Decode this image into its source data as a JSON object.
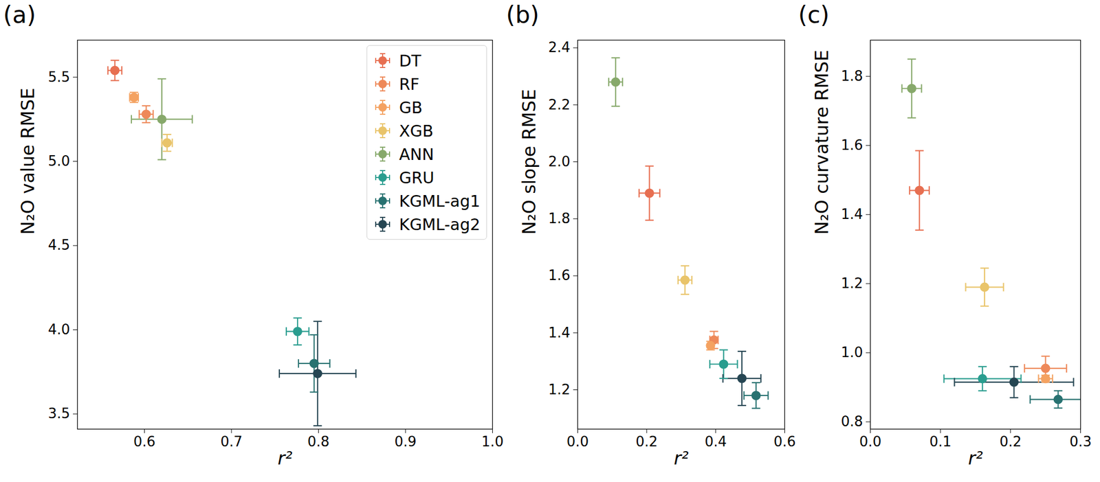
{
  "chart_data": [
    {
      "type": "scatter",
      "title": "(a)",
      "x_label": "r²",
      "y_label": "N₂O value RMSE",
      "xlim": [
        0.523,
        1.0
      ],
      "ylim": [
        3.41,
        5.72
      ],
      "xticks": [
        0.6,
        0.7,
        0.8,
        0.9,
        {
          "value": 1.0,
          "label": "1.0"
        }
      ],
      "yticks": [
        3.5,
        {
          "value": 4.0,
          "label": "4.0"
        },
        4.5,
        {
          "value": 5.0,
          "label": "5.0"
        },
        5.5
      ],
      "legend": "upper right",
      "grid": false,
      "series": [
        {
          "name": "DT",
          "color": "#e76f51",
          "x": 0.566,
          "y": 5.54,
          "x_error": 0.008,
          "y_error": 0.06
        },
        {
          "name": "RF",
          "color": "#ee8959",
          "x": 0.602,
          "y": 5.28,
          "x_error": 0.008,
          "y_error": 0.05
        },
        {
          "name": "GB",
          "color": "#f4a261",
          "x": 0.588,
          "y": 5.38,
          "x_error": 0.005,
          "y_error": 0.03
        },
        {
          "name": "XGB",
          "color": "#e9c46a",
          "x": 0.626,
          "y": 5.11,
          "x_error": 0.006,
          "y_error": 0.05
        },
        {
          "name": "ANN",
          "color": "#87a96b",
          "x": 0.62,
          "y": 5.25,
          "x_error": 0.035,
          "y_error": 0.24
        },
        {
          "name": "GRU",
          "color": "#2a9d8f",
          "x": 0.776,
          "y": 3.99,
          "x_error": 0.013,
          "y_error": 0.08
        },
        {
          "name": "KGML-ag1",
          "color": "#287271",
          "x": 0.795,
          "y": 3.8,
          "x_error": 0.018,
          "y_error": 0.17
        },
        {
          "name": "KGML-ag2",
          "color": "#264653",
          "x": 0.799,
          "y": 3.74,
          "x_error": 0.044,
          "y_error": 0.31
        }
      ]
    },
    {
      "type": "scatter",
      "title": "(b)",
      "x_label": "r²",
      "y_label": "N₂O slope RMSE",
      "xlim": [
        0.0,
        0.6
      ],
      "ylim": [
        1.062,
        2.427
      ],
      "xticks": [
        {
          "value": 0.0,
          "label": "0.0"
        },
        0.2,
        0.4,
        0.6
      ],
      "yticks": [
        1.2,
        1.4,
        1.6,
        1.8,
        {
          "value": 2.0,
          "label": "2.0"
        },
        2.2,
        2.4
      ],
      "grid": false,
      "series": [
        {
          "name": "DT",
          "color": "#e76f51",
          "x": 0.208,
          "y": 1.89,
          "x_error": 0.03,
          "y_error": 0.095
        },
        {
          "name": "RF",
          "color": "#ee8959",
          "x": 0.395,
          "y": 1.375,
          "x_error": 0.012,
          "y_error": 0.03
        },
        {
          "name": "GB",
          "color": "#f4a261",
          "x": 0.385,
          "y": 1.355,
          "x_error": 0.006,
          "y_error": 0.015
        },
        {
          "name": "XGB",
          "color": "#e9c46a",
          "x": 0.311,
          "y": 1.585,
          "x_error": 0.02,
          "y_error": 0.05
        },
        {
          "name": "ANN",
          "color": "#87a96b",
          "x": 0.11,
          "y": 2.28,
          "x_error": 0.02,
          "y_error": 0.085
        },
        {
          "name": "GRU",
          "color": "#2a9d8f",
          "x": 0.423,
          "y": 1.29,
          "x_error": 0.04,
          "y_error": 0.05
        },
        {
          "name": "KGML-ag1",
          "color": "#287271",
          "x": 0.517,
          "y": 1.18,
          "x_error": 0.035,
          "y_error": 0.045
        },
        {
          "name": "KGML-ag2",
          "color": "#264653",
          "x": 0.476,
          "y": 1.24,
          "x_error": 0.055,
          "y_error": 0.095
        }
      ]
    },
    {
      "type": "scatter",
      "title": "(c)",
      "x_label": "r²",
      "y_label": "N₂O curvature RMSE",
      "xlim": [
        0.0,
        0.3
      ],
      "ylim": [
        0.779,
        1.905
      ],
      "xticks": [
        {
          "value": 0.0,
          "label": "0.0"
        },
        0.1,
        0.2,
        0.3
      ],
      "yticks": [
        0.8,
        {
          "value": 1.0,
          "label": "1.0"
        },
        1.2,
        1.4,
        1.6,
        1.8
      ],
      "grid": false,
      "series": [
        {
          "name": "DT",
          "color": "#e76f51",
          "x": 0.07,
          "y": 1.47,
          "x_error": 0.014,
          "y_error": 0.115
        },
        {
          "name": "RF",
          "color": "#ee8959",
          "x": 0.25,
          "y": 0.955,
          "x_error": 0.03,
          "y_error": 0.035
        },
        {
          "name": "GB",
          "color": "#f4a261",
          "x": 0.25,
          "y": 0.925,
          "x_error": 0.01,
          "y_error": 0.01
        },
        {
          "name": "XGB",
          "color": "#e9c46a",
          "x": 0.163,
          "y": 1.19,
          "x_error": 0.027,
          "y_error": 0.055
        },
        {
          "name": "ANN",
          "color": "#87a96b",
          "x": 0.059,
          "y": 1.765,
          "x_error": 0.014,
          "y_error": 0.085
        },
        {
          "name": "GRU",
          "color": "#2a9d8f",
          "x": 0.16,
          "y": 0.925,
          "x_error": 0.055,
          "y_error": 0.035
        },
        {
          "name": "KGML-ag1",
          "color": "#287271",
          "x": 0.268,
          "y": 0.865,
          "x_error": 0.04,
          "y_error": 0.025
        },
        {
          "name": "KGML-ag2",
          "color": "#264653",
          "x": 0.205,
          "y": 0.915,
          "x_error": 0.085,
          "y_error": 0.045
        }
      ]
    }
  ]
}
